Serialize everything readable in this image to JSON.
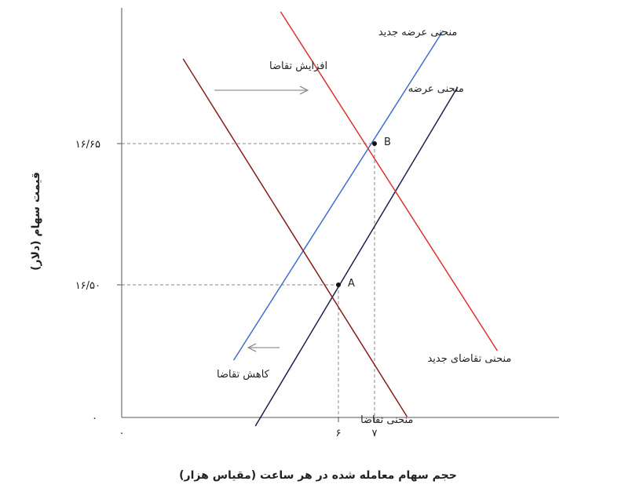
{
  "chart_data": {
    "type": "line",
    "xlabel": "حجم سهام معامله شده در هر ساعت (مقیاس هزار)",
    "ylabel": "قیمت سهام (دلار)",
    "x_ticks": [
      {
        "value": 0,
        "label": "۰"
      },
      {
        "value": 6,
        "label": "۶"
      },
      {
        "value": 7,
        "label": "۷"
      }
    ],
    "y_ticks": [
      {
        "value": 16.5,
        "label": "۱۶/۵۰"
      },
      {
        "value": 16.65,
        "label": "۱۶/۶۵"
      }
    ],
    "origin_y_label": "۰",
    "series": [
      {
        "name": "منحنی عرضه",
        "color": "#1f1f4f",
        "points": [
          [
            3.7,
            16.35
          ],
          [
            9.3,
            16.71
          ]
        ]
      },
      {
        "name": "منحنی عرضه جدید",
        "color": "#3c6fd0",
        "points": [
          [
            3.1,
            16.42
          ],
          [
            8.9,
            16.77
          ]
        ]
      },
      {
        "name": "منحنی تقاضا",
        "color": "#8b1a1a",
        "points": [
          [
            1.7,
            16.74
          ],
          [
            7.9,
            16.36
          ]
        ]
      },
      {
        "name": "منحنی تقاضای جدید",
        "color": "#e03030",
        "points": [
          [
            4.4,
            16.79
          ],
          [
            10.4,
            16.43
          ]
        ]
      }
    ],
    "points": [
      {
        "label": "A",
        "x": 6,
        "y": 16.5
      },
      {
        "label": "B",
        "x": 7,
        "y": 16.65
      }
    ],
    "annotations": {
      "increase": "افزایش تقاضا",
      "decrease": "کاهش تقاضا"
    }
  }
}
